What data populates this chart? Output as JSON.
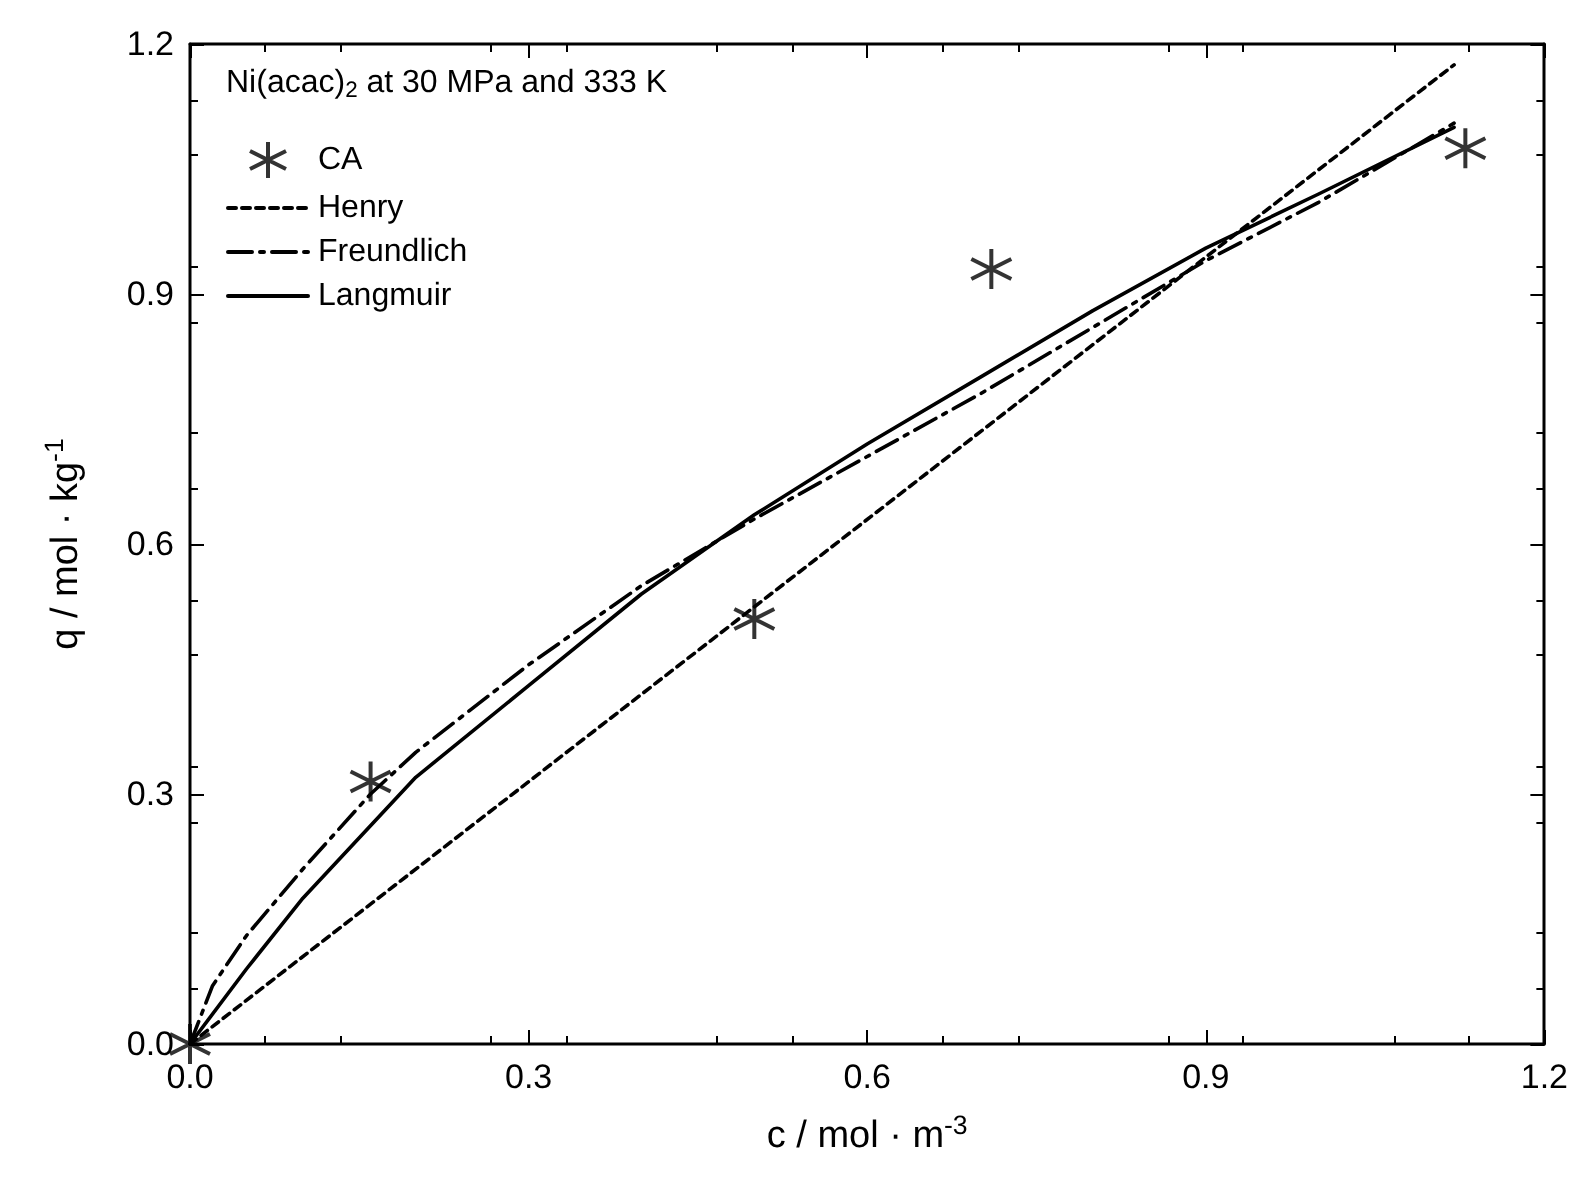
{
  "chart_data": {
    "type": "line",
    "xlabel": "c / mol · m$^{-3}$",
    "ylabel": "q / mol · kg$^{-1}$",
    "legend_title": "Ni(acac)$_{2}$ at 30 MPa and 333 K",
    "xlim": [
      0,
      1.2
    ],
    "ylim": [
      0,
      1.2
    ],
    "xticks": [
      {
        "value": 0,
        "label": "0.0"
      },
      {
        "value": 0.3,
        "label": "0.3"
      },
      {
        "value": 0.6,
        "label": "0.6"
      },
      {
        "value": 0.9,
        "label": "0.9"
      },
      {
        "value": 1.2,
        "label": "1.2"
      }
    ],
    "yticks": [
      {
        "value": 0,
        "label": "0.0"
      },
      {
        "value": 0.3,
        "label": "0.3"
      },
      {
        "value": 0.6,
        "label": "0.6"
      },
      {
        "value": 0.9,
        "label": "0.9"
      },
      {
        "value": 1.2,
        "label": "1.2"
      }
    ],
    "grid": false,
    "legend": "top left",
    "series": [
      {
        "name": "CA",
        "type": "scatter",
        "marker": "cross",
        "color": "#000000",
        "x": [
          0,
          0.16,
          0.5,
          0.71,
          1.13
        ],
        "values": [
          0,
          0.315,
          0.51,
          0.93,
          1.075
        ]
      },
      {
        "name": "Henry",
        "line_style": "dotted",
        "color": "#000000",
        "x": [
          0,
          1.12
        ],
        "values": [
          0,
          1.175
        ]
      },
      {
        "name": "Freundlich",
        "line_style": "dashdot",
        "color": "#000000",
        "x": [
          0,
          0.02,
          0.05,
          0.1,
          0.16,
          0.2,
          0.3,
          0.4,
          0.5,
          0.6,
          0.7,
          0.8,
          0.9,
          1.0,
          1.12
        ],
        "values": [
          0,
          0.07,
          0.13,
          0.21,
          0.3,
          0.35,
          0.455,
          0.55,
          0.63,
          0.705,
          0.78,
          0.86,
          0.94,
          1.01,
          1.105
        ]
      },
      {
        "name": "Langmuir",
        "line_style": "solid",
        "color": "#000000",
        "x": [
          0,
          0.05,
          0.1,
          0.2,
          0.3,
          0.4,
          0.5,
          0.6,
          0.7,
          0.8,
          0.9,
          1.0,
          1.12
        ],
        "values": [
          0,
          0.09,
          0.175,
          0.32,
          0.43,
          0.54,
          0.635,
          0.72,
          0.8,
          0.88,
          0.955,
          1.02,
          1.1
        ]
      }
    ]
  }
}
